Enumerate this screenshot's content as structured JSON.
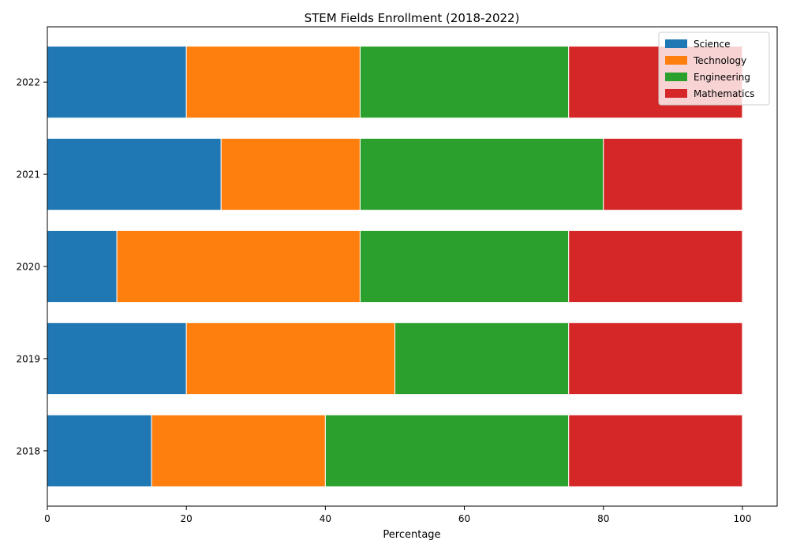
{
  "chart_data": {
    "type": "bar",
    "orientation": "horizontal",
    "stacked": true,
    "title": "STEM Fields Enrollment (2018-2022)",
    "xlabel": "Percentage",
    "ylabel": "",
    "xlim": [
      0,
      105
    ],
    "xticks": [
      0,
      20,
      40,
      60,
      80,
      100
    ],
    "categories": [
      "2018",
      "2019",
      "2020",
      "2021",
      "2022"
    ],
    "series": [
      {
        "name": "Science",
        "color": "#1f77b4",
        "values": [
          15,
          20,
          10,
          25,
          20
        ]
      },
      {
        "name": "Technology",
        "color": "#ff7f0e",
        "values": [
          25,
          30,
          35,
          20,
          25
        ]
      },
      {
        "name": "Engineering",
        "color": "#2ca02c",
        "values": [
          35,
          25,
          30,
          35,
          30
        ]
      },
      {
        "name": "Mathematics",
        "color": "#d62728",
        "values": [
          25,
          25,
          25,
          20,
          25
        ]
      }
    ],
    "grid": false,
    "legend": "top-right"
  }
}
